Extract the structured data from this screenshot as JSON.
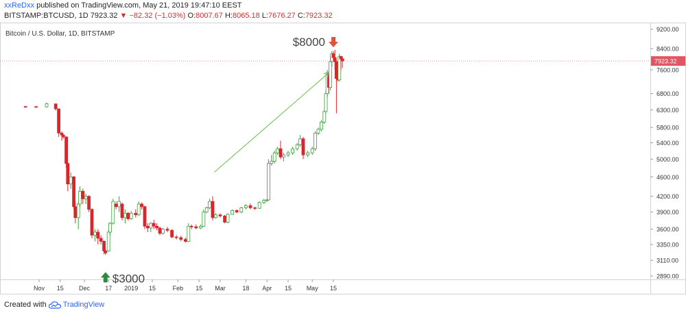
{
  "header": {
    "author": "xxReDxx",
    "published_text": " published on TradingView.com, May 21, 2019 19:47:10 EEST",
    "symbol_interval": "BITSTAMP:BTCUSD, 1D",
    "last_price": "7923.32",
    "change_arrow": "▼",
    "change": "−82.32 (−1.03%)",
    "open_label": "O:",
    "open": "8007.67",
    "high_label": "H:",
    "high": "8065.18",
    "low_label": "L:",
    "low": "7676.27",
    "close_label": "C:",
    "close": "7923.32"
  },
  "footer": {
    "created_with": "Created with",
    "brand": "TradingView"
  },
  "colors": {
    "up": "#3c9b3c",
    "down": "#d8262c",
    "up_fill": "#ffffff",
    "trend_arrow": "#6cbb4f",
    "marker_up": "#2e8b3e",
    "marker_down": "#e0533f",
    "price_tag": "#e25563"
  },
  "chart_data": {
    "type": "candlestick",
    "title": "Bitcoin / U.S. Dollar, 1D, BITSTAMP",
    "scale": "log",
    "ylim": [
      2750,
      9500
    ],
    "y_ticks": [
      "9200.00",
      "8400.00",
      "7600.00",
      "6800.00",
      "6300.00",
      "5800.00",
      "5400.00",
      "5000.00",
      "4600.00",
      "4200.00",
      "3900.00",
      "3600.00",
      "3350.00",
      "3110.00",
      "2890.00"
    ],
    "x_ticks": [
      "Nov",
      "15",
      "Dec",
      "17",
      "2019",
      "15",
      "Feb",
      "15",
      "Mar",
      "18",
      "Apr",
      "15",
      "May",
      "15"
    ],
    "current_price_label": "7923.32",
    "annotations": [
      {
        "label": "$3000",
        "type": "arrow-up",
        "date": "2018-12-15",
        "price": 3000
      },
      {
        "label": "$8000",
        "type": "arrow-down",
        "date": "2019-05-15",
        "price": 8000
      }
    ],
    "trendline": {
      "from": {
        "date": "2019-02-25",
        "price": 4700
      },
      "to": {
        "date": "2019-05-12",
        "price": 7500
      }
    },
    "series": [
      {
        "date": "2018-10-23",
        "open": 6400,
        "high": 6420,
        "low": 6380,
        "close": 6395
      },
      {
        "date": "2018-10-30",
        "open": 6395,
        "high": 6420,
        "low": 6370,
        "close": 6390
      },
      {
        "date": "2018-11-06",
        "open": 6390,
        "high": 6520,
        "low": 6370,
        "close": 6480
      },
      {
        "date": "2018-11-12",
        "open": 6480,
        "high": 6490,
        "low": 6280,
        "close": 6330
      },
      {
        "date": "2018-11-14",
        "open": 6330,
        "high": 6340,
        "low": 5550,
        "close": 5650
      },
      {
        "date": "2018-11-16",
        "open": 5650,
        "high": 5700,
        "low": 5450,
        "close": 5600
      },
      {
        "date": "2018-11-17",
        "open": 5600,
        "high": 5620,
        "low": 5500,
        "close": 5550
      },
      {
        "date": "2018-11-19",
        "open": 5550,
        "high": 5560,
        "low": 4800,
        "close": 4900
      },
      {
        "date": "2018-11-20",
        "open": 4900,
        "high": 4920,
        "low": 4300,
        "close": 4450
      },
      {
        "date": "2018-11-22",
        "open": 4450,
        "high": 4700,
        "low": 4350,
        "close": 4600
      },
      {
        "date": "2018-11-24",
        "open": 4600,
        "high": 4620,
        "low": 3950,
        "close": 4000
      },
      {
        "date": "2018-11-25",
        "open": 4000,
        "high": 4100,
        "low": 3700,
        "close": 3800
      },
      {
        "date": "2018-11-27",
        "open": 3800,
        "high": 4100,
        "low": 3600,
        "close": 4050
      },
      {
        "date": "2018-11-28",
        "open": 4050,
        "high": 4400,
        "low": 4000,
        "close": 4300
      },
      {
        "date": "2018-11-30",
        "open": 4300,
        "high": 4350,
        "low": 4050,
        "close": 4150
      },
      {
        "date": "2018-12-02",
        "open": 4150,
        "high": 4250,
        "low": 4050,
        "close": 4200
      },
      {
        "date": "2018-12-04",
        "open": 4200,
        "high": 4220,
        "low": 3900,
        "close": 3950
      },
      {
        "date": "2018-12-06",
        "open": 3950,
        "high": 3970,
        "low": 3450,
        "close": 3500
      },
      {
        "date": "2018-12-08",
        "open": 3500,
        "high": 3600,
        "low": 3400,
        "close": 3550
      },
      {
        "date": "2018-12-10",
        "open": 3550,
        "high": 3600,
        "low": 3350,
        "close": 3450
      },
      {
        "date": "2018-12-12",
        "open": 3450,
        "high": 3500,
        "low": 3350,
        "close": 3400
      },
      {
        "date": "2018-12-14",
        "open": 3400,
        "high": 3420,
        "low": 3200,
        "close": 3250
      },
      {
        "date": "2018-12-15",
        "open": 3250,
        "high": 3280,
        "low": 3190,
        "close": 3220
      },
      {
        "date": "2018-12-17",
        "open": 3250,
        "high": 3600,
        "low": 3240,
        "close": 3550
      },
      {
        "date": "2018-12-18",
        "open": 3550,
        "high": 3720,
        "low": 3500,
        "close": 3700
      },
      {
        "date": "2018-12-20",
        "open": 3700,
        "high": 4150,
        "low": 3680,
        "close": 4100
      },
      {
        "date": "2018-12-22",
        "open": 4050,
        "high": 4100,
        "low": 3950,
        "close": 4000
      },
      {
        "date": "2018-12-24",
        "open": 4000,
        "high": 4200,
        "low": 3900,
        "close": 4100
      },
      {
        "date": "2018-12-26",
        "open": 4050,
        "high": 4080,
        "low": 3750,
        "close": 3800
      },
      {
        "date": "2018-12-28",
        "open": 3800,
        "high": 3950,
        "low": 3700,
        "close": 3880
      },
      {
        "date": "2018-12-30",
        "open": 3880,
        "high": 3900,
        "low": 3750,
        "close": 3780
      },
      {
        "date": "2019-01-01",
        "open": 3780,
        "high": 3920,
        "low": 3760,
        "close": 3880
      },
      {
        "date": "2019-01-04",
        "open": 3880,
        "high": 3950,
        "low": 3800,
        "close": 3850
      },
      {
        "date": "2019-01-06",
        "open": 3850,
        "high": 4100,
        "low": 3830,
        "close": 4050
      },
      {
        "date": "2019-01-08",
        "open": 4050,
        "high": 4080,
        "low": 3950,
        "close": 4000
      },
      {
        "date": "2019-01-10",
        "open": 4000,
        "high": 4020,
        "low": 3600,
        "close": 3650
      },
      {
        "date": "2019-01-12",
        "open": 3650,
        "high": 3700,
        "low": 3550,
        "close": 3620
      },
      {
        "date": "2019-01-14",
        "open": 3620,
        "high": 3720,
        "low": 3550,
        "close": 3700
      },
      {
        "date": "2019-01-16",
        "open": 3700,
        "high": 3760,
        "low": 3600,
        "close": 3650
      },
      {
        "date": "2019-01-18",
        "open": 3650,
        "high": 3700,
        "low": 3580,
        "close": 3620
      },
      {
        "date": "2019-01-20",
        "open": 3620,
        "high": 3640,
        "low": 3500,
        "close": 3530
      },
      {
        "date": "2019-01-22",
        "open": 3530,
        "high": 3620,
        "low": 3510,
        "close": 3600
      },
      {
        "date": "2019-01-25",
        "open": 3600,
        "high": 3640,
        "low": 3550,
        "close": 3580
      },
      {
        "date": "2019-01-28",
        "open": 3580,
        "high": 3600,
        "low": 3450,
        "close": 3470
      },
      {
        "date": "2019-01-31",
        "open": 3470,
        "high": 3500,
        "low": 3430,
        "close": 3460
      },
      {
        "date": "2019-02-03",
        "open": 3460,
        "high": 3490,
        "low": 3400,
        "close": 3430
      },
      {
        "date": "2019-02-06",
        "open": 3430,
        "high": 3460,
        "low": 3380,
        "close": 3400
      },
      {
        "date": "2019-02-08",
        "open": 3400,
        "high": 3700,
        "low": 3390,
        "close": 3650
      },
      {
        "date": "2019-02-10",
        "open": 3650,
        "high": 3680,
        "low": 3600,
        "close": 3640
      },
      {
        "date": "2019-02-13",
        "open": 3640,
        "high": 3680,
        "low": 3600,
        "close": 3620
      },
      {
        "date": "2019-02-16",
        "open": 3620,
        "high": 3680,
        "low": 3600,
        "close": 3650
      },
      {
        "date": "2019-02-18",
        "open": 3650,
        "high": 3950,
        "low": 3640,
        "close": 3900
      },
      {
        "date": "2019-02-20",
        "open": 3900,
        "high": 4000,
        "low": 3880,
        "close": 3980
      },
      {
        "date": "2019-02-22",
        "open": 3980,
        "high": 4150,
        "low": 3950,
        "close": 4100
      },
      {
        "date": "2019-02-24",
        "open": 4100,
        "high": 4200,
        "low": 3750,
        "close": 3800
      },
      {
        "date": "2019-02-26",
        "open": 3800,
        "high": 3880,
        "low": 3780,
        "close": 3850
      },
      {
        "date": "2019-03-01",
        "open": 3850,
        "high": 3880,
        "low": 3800,
        "close": 3830
      },
      {
        "date": "2019-03-04",
        "open": 3830,
        "high": 3850,
        "low": 3700,
        "close": 3720
      },
      {
        "date": "2019-03-06",
        "open": 3720,
        "high": 3880,
        "low": 3700,
        "close": 3860
      },
      {
        "date": "2019-03-09",
        "open": 3860,
        "high": 3950,
        "low": 3850,
        "close": 3930
      },
      {
        "date": "2019-03-12",
        "open": 3930,
        "high": 3950,
        "low": 3880,
        "close": 3900
      },
      {
        "date": "2019-03-15",
        "open": 3900,
        "high": 4000,
        "low": 3880,
        "close": 3980
      },
      {
        "date": "2019-03-18",
        "open": 3980,
        "high": 4050,
        "low": 3950,
        "close": 4020
      },
      {
        "date": "2019-03-21",
        "open": 4020,
        "high": 4060,
        "low": 3950,
        "close": 3980
      },
      {
        "date": "2019-03-24",
        "open": 3980,
        "high": 4000,
        "low": 3940,
        "close": 3970
      },
      {
        "date": "2019-03-27",
        "open": 3970,
        "high": 4100,
        "low": 3960,
        "close": 4080
      },
      {
        "date": "2019-03-30",
        "open": 4080,
        "high": 4150,
        "low": 4050,
        "close": 4120
      },
      {
        "date": "2019-04-01",
        "open": 4120,
        "high": 4150,
        "low": 4090,
        "close": 4130
      },
      {
        "date": "2019-04-02",
        "open": 4130,
        "high": 5000,
        "low": 4120,
        "close": 4900
      },
      {
        "date": "2019-04-04",
        "open": 4900,
        "high": 5100,
        "low": 4850,
        "close": 4950
      },
      {
        "date": "2019-04-06",
        "open": 4950,
        "high": 5200,
        "low": 4900,
        "close": 5150
      },
      {
        "date": "2019-04-08",
        "open": 5150,
        "high": 5300,
        "low": 5100,
        "close": 5250
      },
      {
        "date": "2019-04-10",
        "open": 5250,
        "high": 5450,
        "low": 5000,
        "close": 5050
      },
      {
        "date": "2019-04-12",
        "open": 5050,
        "high": 5150,
        "low": 4950,
        "close": 5100
      },
      {
        "date": "2019-04-15",
        "open": 5100,
        "high": 5200,
        "low": 5050,
        "close": 5150
      },
      {
        "date": "2019-04-18",
        "open": 5150,
        "high": 5300,
        "low": 5100,
        "close": 5250
      },
      {
        "date": "2019-04-21",
        "open": 5250,
        "high": 5400,
        "low": 5200,
        "close": 5350
      },
      {
        "date": "2019-04-23",
        "open": 5350,
        "high": 5600,
        "low": 5300,
        "close": 5500
      },
      {
        "date": "2019-04-25",
        "open": 5500,
        "high": 5550,
        "low": 5000,
        "close": 5100
      },
      {
        "date": "2019-04-28",
        "open": 5100,
        "high": 5200,
        "low": 5050,
        "close": 5150
      },
      {
        "date": "2019-05-01",
        "open": 5150,
        "high": 5300,
        "low": 5100,
        "close": 5250
      },
      {
        "date": "2019-05-03",
        "open": 5250,
        "high": 5700,
        "low": 5200,
        "close": 5650
      },
      {
        "date": "2019-05-05",
        "open": 5650,
        "high": 5800,
        "low": 5600,
        "close": 5750
      },
      {
        "date": "2019-05-07",
        "open": 5750,
        "high": 6000,
        "low": 5700,
        "close": 5950
      },
      {
        "date": "2019-05-09",
        "open": 5950,
        "high": 6300,
        "low": 5900,
        "close": 6250
      },
      {
        "date": "2019-05-10",
        "open": 6250,
        "high": 6900,
        "low": 6200,
        "close": 6800
      },
      {
        "date": "2019-05-11",
        "open": 6800,
        "high": 7600,
        "low": 6700,
        "close": 7500
      },
      {
        "date": "2019-05-12",
        "open": 7500,
        "high": 7550,
        "low": 6800,
        "close": 7000
      },
      {
        "date": "2019-05-13",
        "open": 7000,
        "high": 8100,
        "low": 6900,
        "close": 7900
      },
      {
        "date": "2019-05-14",
        "open": 7900,
        "high": 8300,
        "low": 7700,
        "close": 8200
      },
      {
        "date": "2019-05-15",
        "open": 8200,
        "high": 8300,
        "low": 7900,
        "close": 8050
      },
      {
        "date": "2019-05-16",
        "open": 8050,
        "high": 8350,
        "low": 7600,
        "close": 7900
      },
      {
        "date": "2019-05-17",
        "open": 7900,
        "high": 7950,
        "low": 6200,
        "close": 7300
      },
      {
        "date": "2019-05-18",
        "open": 7300,
        "high": 7400,
        "low": 7200,
        "close": 7250
      },
      {
        "date": "2019-05-19",
        "open": 7250,
        "high": 8200,
        "low": 7200,
        "close": 8100
      },
      {
        "date": "2019-05-20",
        "open": 8100,
        "high": 8100,
        "low": 7600,
        "close": 8000
      },
      {
        "date": "2019-05-21",
        "open": 8007.67,
        "high": 8065.18,
        "low": 7676.27,
        "close": 7923.32
      }
    ]
  }
}
